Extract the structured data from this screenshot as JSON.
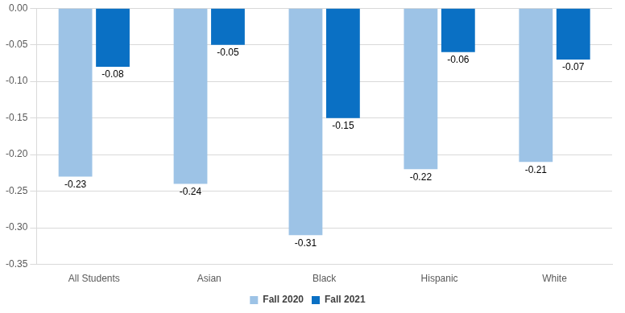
{
  "chart_data": {
    "type": "bar",
    "categories": [
      "All Students",
      "Asian",
      "Black",
      "Hispanic",
      "White"
    ],
    "series": [
      {
        "name": "Fall 2020",
        "color": "#9dc3e6",
        "values": [
          -0.23,
          -0.24,
          -0.31,
          -0.22,
          -0.21
        ]
      },
      {
        "name": "Fall 2021",
        "color": "#0a70c4",
        "values": [
          -0.08,
          -0.05,
          -0.15,
          -0.06,
          -0.07
        ]
      }
    ],
    "ylim": [
      -0.35,
      0
    ],
    "yticks": [
      {
        "value": 0,
        "label": "0.00"
      },
      -0.05,
      {
        "value": -0.1,
        "label": "-0.10"
      },
      -0.15,
      {
        "value": -0.2,
        "label": "-0.20"
      },
      -0.25,
      {
        "value": -0.3,
        "label": "-0.30"
      },
      -0.35
    ],
    "grid": true,
    "legend": "bottom",
    "data_labels": true
  }
}
